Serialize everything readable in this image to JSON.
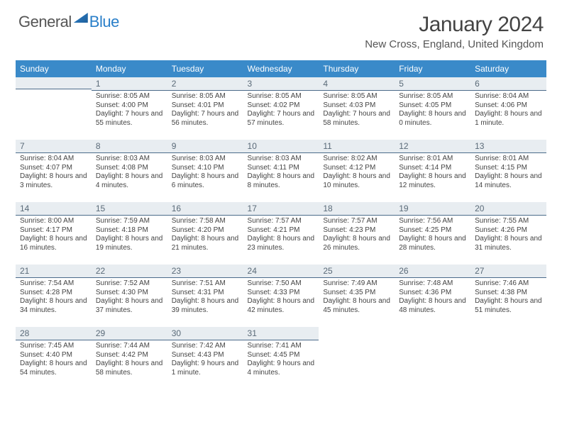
{
  "brand": {
    "name1": "General",
    "name2": "Blue"
  },
  "title": "January 2024",
  "location": "New Cross, England, United Kingdom",
  "style": {
    "header_bg": "#3a8ac9",
    "header_fg": "#ffffff",
    "daynum_bg": "#e8edf1",
    "daynum_border": "#4b6b8a",
    "page_bg": "#ffffff",
    "text_color": "#333333",
    "title_fontsize": 30,
    "location_fontsize": 15,
    "th_fontsize": 12,
    "daynum_fontsize": 12,
    "info_fontsize": 10
  },
  "dows": [
    "Sunday",
    "Monday",
    "Tuesday",
    "Wednesday",
    "Thursday",
    "Friday",
    "Saturday"
  ],
  "weeks": [
    [
      null,
      {
        "d": "1",
        "sr": "8:05 AM",
        "ss": "4:00 PM",
        "dl": "7 hours and 55 minutes."
      },
      {
        "d": "2",
        "sr": "8:05 AM",
        "ss": "4:01 PM",
        "dl": "7 hours and 56 minutes."
      },
      {
        "d": "3",
        "sr": "8:05 AM",
        "ss": "4:02 PM",
        "dl": "7 hours and 57 minutes."
      },
      {
        "d": "4",
        "sr": "8:05 AM",
        "ss": "4:03 PM",
        "dl": "7 hours and 58 minutes."
      },
      {
        "d": "5",
        "sr": "8:05 AM",
        "ss": "4:05 PM",
        "dl": "8 hours and 0 minutes."
      },
      {
        "d": "6",
        "sr": "8:04 AM",
        "ss": "4:06 PM",
        "dl": "8 hours and 1 minute."
      }
    ],
    [
      {
        "d": "7",
        "sr": "8:04 AM",
        "ss": "4:07 PM",
        "dl": "8 hours and 3 minutes."
      },
      {
        "d": "8",
        "sr": "8:03 AM",
        "ss": "4:08 PM",
        "dl": "8 hours and 4 minutes."
      },
      {
        "d": "9",
        "sr": "8:03 AM",
        "ss": "4:10 PM",
        "dl": "8 hours and 6 minutes."
      },
      {
        "d": "10",
        "sr": "8:03 AM",
        "ss": "4:11 PM",
        "dl": "8 hours and 8 minutes."
      },
      {
        "d": "11",
        "sr": "8:02 AM",
        "ss": "4:12 PM",
        "dl": "8 hours and 10 minutes."
      },
      {
        "d": "12",
        "sr": "8:01 AM",
        "ss": "4:14 PM",
        "dl": "8 hours and 12 minutes."
      },
      {
        "d": "13",
        "sr": "8:01 AM",
        "ss": "4:15 PM",
        "dl": "8 hours and 14 minutes."
      }
    ],
    [
      {
        "d": "14",
        "sr": "8:00 AM",
        "ss": "4:17 PM",
        "dl": "8 hours and 16 minutes."
      },
      {
        "d": "15",
        "sr": "7:59 AM",
        "ss": "4:18 PM",
        "dl": "8 hours and 19 minutes."
      },
      {
        "d": "16",
        "sr": "7:58 AM",
        "ss": "4:20 PM",
        "dl": "8 hours and 21 minutes."
      },
      {
        "d": "17",
        "sr": "7:57 AM",
        "ss": "4:21 PM",
        "dl": "8 hours and 23 minutes."
      },
      {
        "d": "18",
        "sr": "7:57 AM",
        "ss": "4:23 PM",
        "dl": "8 hours and 26 minutes."
      },
      {
        "d": "19",
        "sr": "7:56 AM",
        "ss": "4:25 PM",
        "dl": "8 hours and 28 minutes."
      },
      {
        "d": "20",
        "sr": "7:55 AM",
        "ss": "4:26 PM",
        "dl": "8 hours and 31 minutes."
      }
    ],
    [
      {
        "d": "21",
        "sr": "7:54 AM",
        "ss": "4:28 PM",
        "dl": "8 hours and 34 minutes."
      },
      {
        "d": "22",
        "sr": "7:52 AM",
        "ss": "4:30 PM",
        "dl": "8 hours and 37 minutes."
      },
      {
        "d": "23",
        "sr": "7:51 AM",
        "ss": "4:31 PM",
        "dl": "8 hours and 39 minutes."
      },
      {
        "d": "24",
        "sr": "7:50 AM",
        "ss": "4:33 PM",
        "dl": "8 hours and 42 minutes."
      },
      {
        "d": "25",
        "sr": "7:49 AM",
        "ss": "4:35 PM",
        "dl": "8 hours and 45 minutes."
      },
      {
        "d": "26",
        "sr": "7:48 AM",
        "ss": "4:36 PM",
        "dl": "8 hours and 48 minutes."
      },
      {
        "d": "27",
        "sr": "7:46 AM",
        "ss": "4:38 PM",
        "dl": "8 hours and 51 minutes."
      }
    ],
    [
      {
        "d": "28",
        "sr": "7:45 AM",
        "ss": "4:40 PM",
        "dl": "8 hours and 54 minutes."
      },
      {
        "d": "29",
        "sr": "7:44 AM",
        "ss": "4:42 PM",
        "dl": "8 hours and 58 minutes."
      },
      {
        "d": "30",
        "sr": "7:42 AM",
        "ss": "4:43 PM",
        "dl": "9 hours and 1 minute."
      },
      {
        "d": "31",
        "sr": "7:41 AM",
        "ss": "4:45 PM",
        "dl": "9 hours and 4 minutes."
      },
      null,
      null,
      null
    ]
  ],
  "labels": {
    "sunrise": "Sunrise:",
    "sunset": "Sunset:",
    "daylight": "Daylight:"
  }
}
